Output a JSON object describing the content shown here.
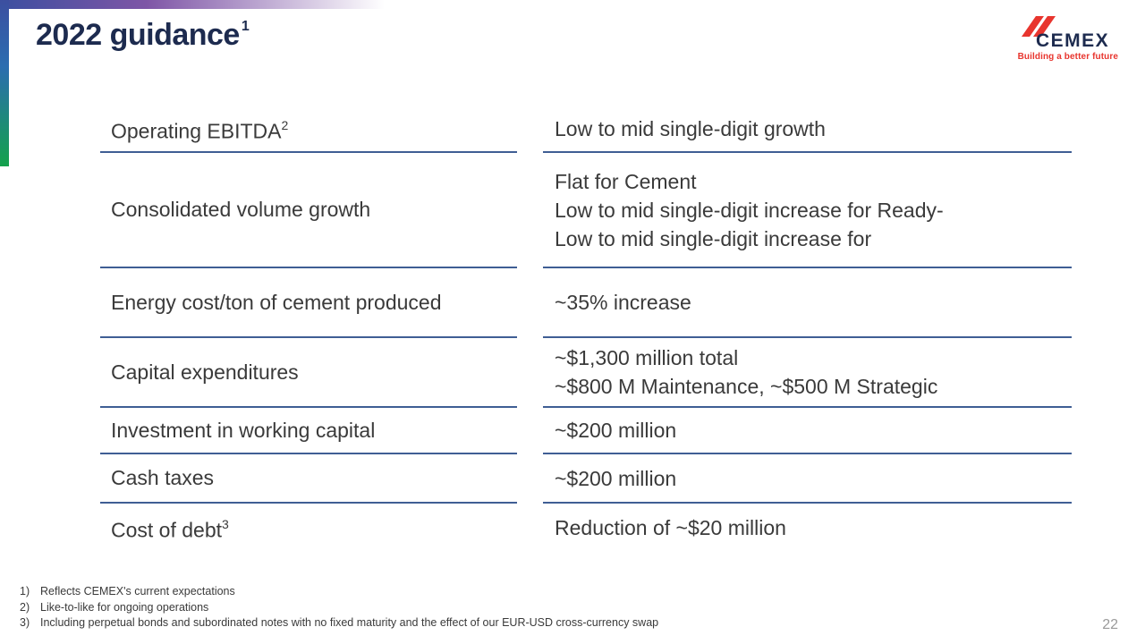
{
  "slide": {
    "title": "2022 guidance",
    "title_sup": "1",
    "page_number": "22"
  },
  "logo": {
    "brand": "CEMEX",
    "tagline": "Building a better future"
  },
  "table": {
    "rows": [
      {
        "label": "Operating EBITDA",
        "label_sup": "2",
        "value_lines": [
          "Low to mid single-digit growth"
        ]
      },
      {
        "label": "Consolidated volume growth",
        "value_lines": [
          "Flat for Cement",
          "Low to mid single-digit increase for Ready-",
          "Low to mid single-digit increase for"
        ]
      },
      {
        "label": "Energy cost/ton of cement produced",
        "value_lines": [
          "~35% increase"
        ]
      },
      {
        "label": "Capital expenditures",
        "value_lines": [
          "~$1,300 million total",
          "~$800 M Maintenance, ~$500 M Strategic"
        ]
      },
      {
        "label": "Investment in working capital",
        "value_lines": [
          "~$200 million"
        ]
      },
      {
        "label": "Cash taxes",
        "value_lines": [
          "~$200 million"
        ]
      },
      {
        "label": "Cost of debt",
        "label_sup": "3",
        "value_lines": [
          "Reduction of ~$20 million"
        ]
      }
    ]
  },
  "footnotes": [
    {
      "num": "1)",
      "text": "Reflects CEMEX's current expectations"
    },
    {
      "num": "2)",
      "text": "Like-to-like for ongoing operations"
    },
    {
      "num": "3)",
      "text": "Including perpetual bonds and subordinated notes with no fixed maturity and the effect of our EUR-USD cross-currency swap"
    }
  ],
  "colors": {
    "rule_line": "#3f5e94",
    "title_navy": "#1d2b4f",
    "brand_red": "#e8352e",
    "body_text": "#3a3a3a",
    "accent_blue": "#3c4fa0",
    "accent_green": "#14a24c",
    "accent_purple": "#7e55a6"
  }
}
